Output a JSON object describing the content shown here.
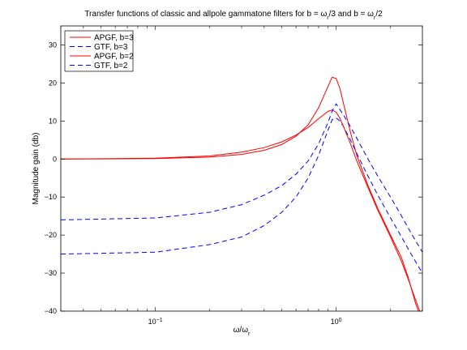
{
  "chart_data": {
    "type": "line",
    "title": {
      "prefix": "Transfer functions of classic and allpole gammatone filters for b = ω",
      "sub1": "r",
      "mid": "/3 and b = ω",
      "sub2": "r",
      "suffix": "/2"
    },
    "xlabel": {
      "main": "ω/ω",
      "sub": "r"
    },
    "ylabel": "Magnitude gain (db)",
    "x_scale": "log",
    "xlim": [
      0.03,
      3
    ],
    "ylim": [
      -40,
      35
    ],
    "xticks": [
      {
        "value": 0.1,
        "base": "10",
        "exp": "−1"
      },
      {
        "value": 1,
        "base": "10",
        "exp": "0"
      }
    ],
    "yticks": [
      -40,
      -30,
      -20,
      -10,
      0,
      10,
      20,
      30
    ],
    "ytick_labels": [
      "−40",
      "−30",
      "−20",
      "−10",
      "0",
      "10",
      "20",
      "30"
    ],
    "grid": false,
    "legend_position": "top-left",
    "series": [
      {
        "name": "APGF, b=3",
        "color": "#ff0000",
        "dash": "solid",
        "points": [
          [
            0.03,
            0
          ],
          [
            0.1,
            0.1
          ],
          [
            0.2,
            0.5
          ],
          [
            0.3,
            1.2
          ],
          [
            0.4,
            2.3
          ],
          [
            0.5,
            3.8
          ],
          [
            0.6,
            6.0
          ],
          [
            0.7,
            9.0
          ],
          [
            0.8,
            13.5
          ],
          [
            0.9,
            19.0
          ],
          [
            0.95,
            21.5
          ],
          [
            1.0,
            21.2
          ],
          [
            1.05,
            18.5
          ],
          [
            1.1,
            14.5
          ],
          [
            1.2,
            7.0
          ],
          [
            1.3,
            1.0
          ],
          [
            1.5,
            -7.0
          ],
          [
            1.7,
            -13.0
          ],
          [
            2.0,
            -20.0
          ],
          [
            2.3,
            -26.0
          ],
          [
            2.5,
            -31.0
          ],
          [
            2.75,
            -38.0
          ],
          [
            2.85,
            -40.0
          ]
        ]
      },
      {
        "name": "GTF, b=3",
        "color": "#0000ff",
        "dash": "dashed",
        "points": [
          [
            0.03,
            -25.0
          ],
          [
            0.1,
            -24.5
          ],
          [
            0.2,
            -22.5
          ],
          [
            0.3,
            -20.5
          ],
          [
            0.4,
            -17.5
          ],
          [
            0.5,
            -14.0
          ],
          [
            0.6,
            -10.0
          ],
          [
            0.7,
            -5.0
          ],
          [
            0.8,
            1.0
          ],
          [
            0.9,
            7.5
          ],
          [
            0.95,
            10.3
          ],
          [
            1.0,
            10.8
          ],
          [
            1.05,
            10.0
          ],
          [
            1.1,
            8.5
          ],
          [
            1.2,
            5.0
          ],
          [
            1.3,
            1.5
          ],
          [
            1.5,
            -4.5
          ],
          [
            1.7,
            -9.5
          ],
          [
            2.0,
            -15.5
          ],
          [
            2.3,
            -20.5
          ],
          [
            2.6,
            -25.0
          ],
          [
            3.0,
            -30.0
          ]
        ]
      },
      {
        "name": "APGF, b=2",
        "color": "#ff0000",
        "dash": "solid",
        "points": [
          [
            0.03,
            0
          ],
          [
            0.1,
            0.2
          ],
          [
            0.2,
            0.8
          ],
          [
            0.3,
            1.8
          ],
          [
            0.4,
            3.0
          ],
          [
            0.5,
            4.5
          ],
          [
            0.6,
            6.3
          ],
          [
            0.7,
            8.3
          ],
          [
            0.8,
            10.6
          ],
          [
            0.9,
            12.5
          ],
          [
            0.95,
            12.9
          ],
          [
            1.0,
            12.3
          ],
          [
            1.05,
            10.7
          ],
          [
            1.1,
            8.5
          ],
          [
            1.2,
            4.0
          ],
          [
            1.3,
            -0.5
          ],
          [
            1.5,
            -7.5
          ],
          [
            1.7,
            -13.5
          ],
          [
            2.0,
            -20.5
          ],
          [
            2.3,
            -27.0
          ],
          [
            2.5,
            -31.5
          ],
          [
            2.7,
            -36.0
          ],
          [
            2.9,
            -40.0
          ]
        ]
      },
      {
        "name": "GTF, b=2",
        "color": "#0000ff",
        "dash": "dashed",
        "points": [
          [
            0.03,
            -16.0
          ],
          [
            0.1,
            -15.5
          ],
          [
            0.2,
            -14.0
          ],
          [
            0.3,
            -12.0
          ],
          [
            0.4,
            -9.5
          ],
          [
            0.5,
            -7.0
          ],
          [
            0.6,
            -4.0
          ],
          [
            0.7,
            -0.5
          ],
          [
            0.8,
            4.0
          ],
          [
            0.9,
            9.5
          ],
          [
            0.95,
            12.5
          ],
          [
            1.0,
            14.5
          ],
          [
            1.05,
            13.0
          ],
          [
            1.1,
            11.5
          ],
          [
            1.2,
            8.5
          ],
          [
            1.3,
            5.5
          ],
          [
            1.5,
            0.0
          ],
          [
            1.7,
            -4.5
          ],
          [
            2.0,
            -10.0
          ],
          [
            2.3,
            -15.0
          ],
          [
            2.6,
            -19.5
          ],
          [
            3.0,
            -24.5
          ]
        ]
      }
    ]
  }
}
